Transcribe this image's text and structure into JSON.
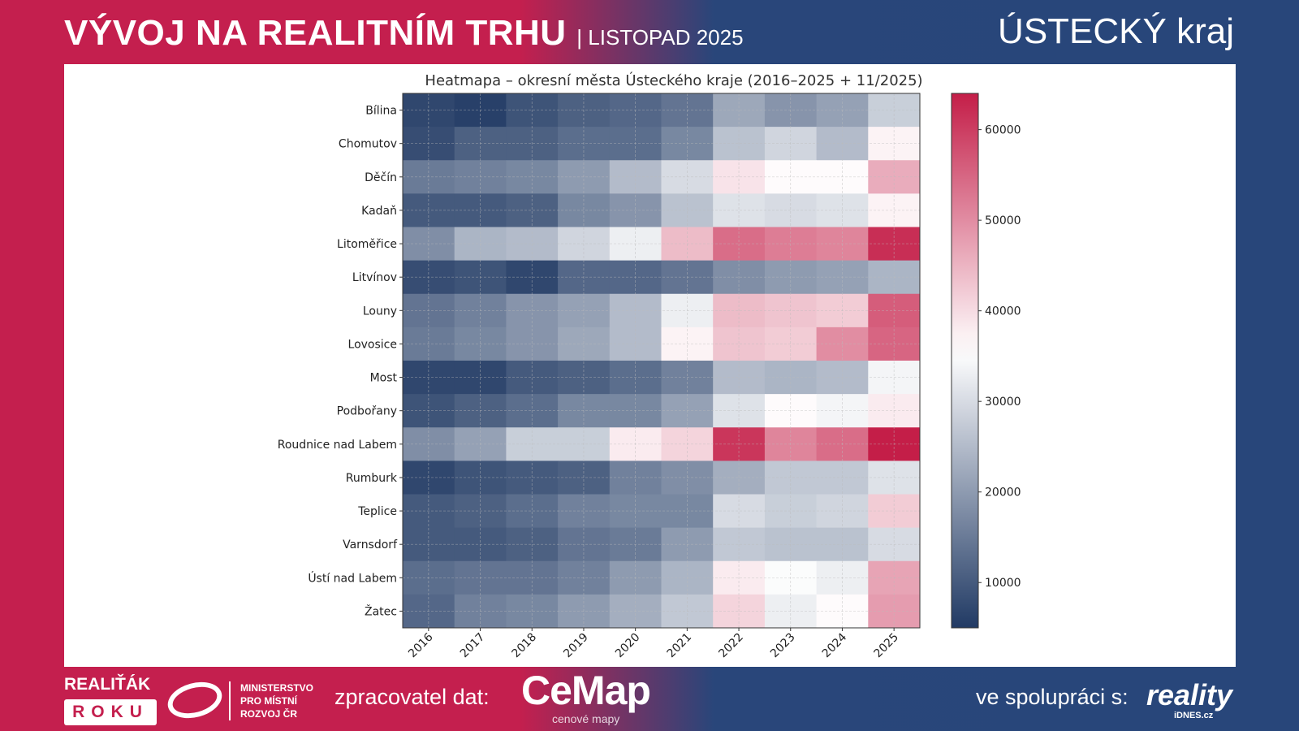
{
  "header": {
    "title": "VÝVOJ NA REALITNÍM TRHU",
    "subtitle": "| LISTOPAD 2025",
    "region": "ÚSTECKÝ kraj"
  },
  "footer": {
    "realitak": "REALIŤÁK",
    "roku": "ROKU",
    "mmr": [
      "MINISTERSTVO",
      "PRO MÍSTNÍ",
      "ROZVOJ ČR"
    ],
    "processor_label": "zpracovatel dat:",
    "cemap": "CeMap",
    "cemap_sub": "cenové mapy",
    "partner_label": "ve spolupráci s:",
    "reality": "reality",
    "idnes": "iDNES.cz"
  },
  "colors": {
    "low": "#213a64",
    "mid": "#ffffff",
    "high": "#c41e48"
  },
  "chart_data": {
    "type": "heatmap",
    "title": "Heatmapa – okresní města Ústeckého kraje (2016–2025 + 11/2025)",
    "x": [
      "2016",
      "2017",
      "2018",
      "2019",
      "2020",
      "2021",
      "2022",
      "2023",
      "2024",
      "2025"
    ],
    "y": [
      "Bílina",
      "Chomutov",
      "Děčín",
      "Kadaň",
      "Litoměřice",
      "Litvínov",
      "Louny",
      "Lovosice",
      "Most",
      "Podbořany",
      "Roudnice nad Labem",
      "Rumburk",
      "Teplice",
      "Varnsdorf",
      "Ústí nad Labem",
      "Žatec"
    ],
    "values": [
      [
        7000,
        6000,
        9000,
        11000,
        12000,
        14000,
        22000,
        19000,
        21000,
        28000
      ],
      [
        8000,
        11000,
        11000,
        13000,
        13000,
        17000,
        26000,
        29000,
        25000,
        37000
      ],
      [
        15000,
        16000,
        17000,
        20000,
        25000,
        30000,
        39000,
        36000,
        36000,
        46000
      ],
      [
        10000,
        10000,
        11000,
        17000,
        19000,
        26000,
        31000,
        30000,
        31000,
        37000
      ],
      [
        18000,
        24000,
        25000,
        29000,
        33000,
        44000,
        54000,
        52000,
        51000,
        62000
      ],
      [
        8000,
        9000,
        7000,
        12000,
        12000,
        14000,
        18000,
        20000,
        21000,
        24000
      ],
      [
        14000,
        16000,
        19000,
        21000,
        25000,
        33000,
        44000,
        43000,
        42000,
        56000
      ],
      [
        15000,
        17000,
        19000,
        22000,
        25000,
        37000,
        43000,
        42000,
        50000,
        55000
      ],
      [
        7000,
        7000,
        10000,
        11000,
        13000,
        16000,
        25000,
        24000,
        25000,
        34000
      ],
      [
        9000,
        11000,
        13000,
        17000,
        17000,
        21000,
        31000,
        36000,
        34000,
        38000
      ],
      [
        18000,
        21000,
        28000,
        28000,
        38000,
        41000,
        61000,
        51000,
        54000,
        64000
      ],
      [
        7000,
        9000,
        10000,
        11000,
        16000,
        18000,
        23000,
        27000,
        27000,
        31000
      ],
      [
        10000,
        11000,
        13000,
        16000,
        17000,
        17000,
        30000,
        28000,
        29000,
        42000
      ],
      [
        10000,
        10000,
        11000,
        14000,
        15000,
        20000,
        27000,
        26000,
        26000,
        30000
      ],
      [
        13000,
        14000,
        14000,
        16000,
        20000,
        24000,
        38000,
        35000,
        33000,
        47000
      ],
      [
        12000,
        16000,
        17000,
        20000,
        23000,
        27000,
        41000,
        33000,
        36000,
        48000
      ]
    ],
    "colorbar": {
      "range": [
        5000,
        64000
      ],
      "ticks": [
        "10000",
        "20000",
        "30000",
        "40000",
        "50000",
        "60000"
      ],
      "tick_values": [
        10000,
        20000,
        30000,
        40000,
        50000,
        60000
      ]
    },
    "grid": true
  }
}
